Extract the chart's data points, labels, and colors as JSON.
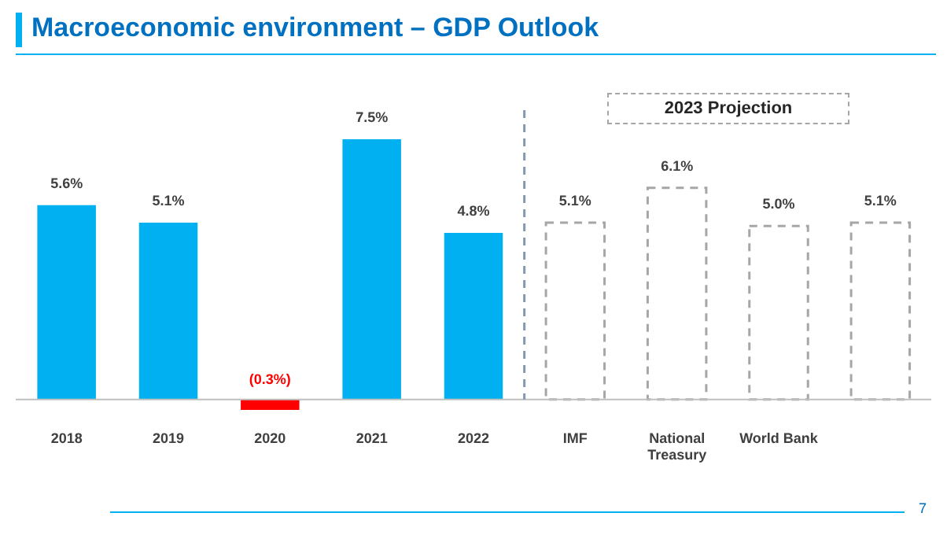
{
  "chart_data": {
    "type": "bar",
    "title": "Macroeconomic environment – GDP Outlook",
    "categories": [
      "2018",
      "2019",
      "2020",
      "2021",
      "2022",
      "IMF",
      "National Treasury",
      "World Bank",
      null
    ],
    "series": [
      {
        "colors": [
          "#00b0f0",
          "#00b0f0",
          "#ff0000",
          "#00b0f0",
          "#00b0f0",
          "#00b0f0",
          "#00b0f0",
          "#00b0f0",
          "#00b0f0"
        ],
        "values": [
          5.6,
          5.1,
          -0.3,
          7.5,
          4.8,
          null,
          null,
          null,
          null
        ],
        "value_labels": [
          "5.6%",
          "5.1%",
          "(0.3%)",
          "7.5%",
          "4.8%",
          null,
          null,
          null,
          null
        ]
      },
      {
        "color": "#a6a6a6",
        "line_style": "dashed",
        "values": [
          null,
          null,
          null,
          null,
          null,
          5.1,
          6.1,
          5.0,
          5.1
        ],
        "value_labels": [
          null,
          null,
          null,
          null,
          null,
          "5.1%",
          "6.1%",
          "5.0%",
          "5.1%"
        ]
      }
    ],
    "ref_lines": [
      {
        "axis": "x",
        "value": "IMF",
        "color": "#8497b0",
        "line_style": "dashed"
      }
    ],
    "annotations": [
      "2023 Projection",
      "7"
    ],
    "grid": false,
    "legend": false
  }
}
